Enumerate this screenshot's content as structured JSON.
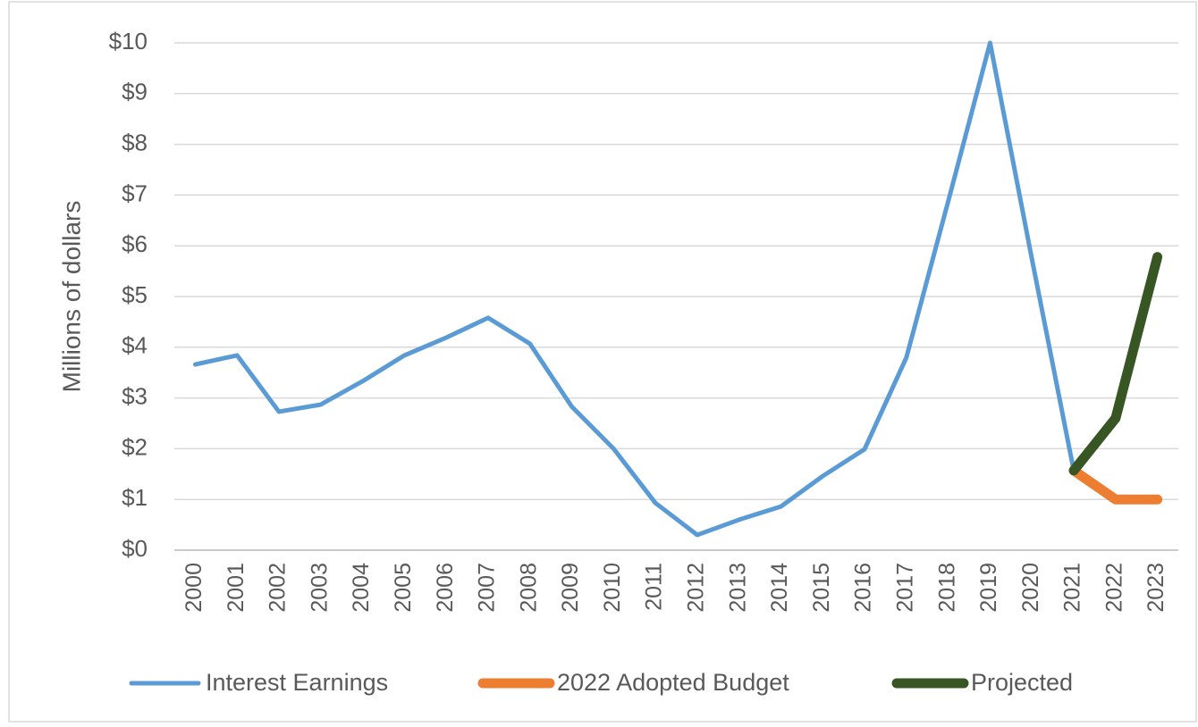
{
  "chart_data": {
    "type": "line",
    "y_label": "Millions of dollars",
    "categories": [
      "2000",
      "2001",
      "2002",
      "2003",
      "2004",
      "2005",
      "2006",
      "2007",
      "2008",
      "2009",
      "2010",
      "2011",
      "2012",
      "2013",
      "2014",
      "2015",
      "2016",
      "2017",
      "2018",
      "2019",
      "2020",
      "2021",
      "2022",
      "2023"
    ],
    "series": [
      {
        "name": "Interest Earnings",
        "color": "#5b9bd5",
        "values": [
          3.66,
          3.84,
          2.73,
          2.87,
          3.33,
          3.84,
          4.19,
          4.58,
          4.07,
          2.83,
          2.0,
          0.93,
          0.3,
          0.6,
          0.86,
          1.46,
          1.99,
          3.8,
          6.88,
          10,
          5.74,
          1.57,
          null,
          null
        ]
      },
      {
        "name": "2022 Adopted Budget",
        "color": "#ed7d31",
        "values": [
          null,
          null,
          null,
          null,
          null,
          null,
          null,
          null,
          null,
          null,
          null,
          null,
          null,
          null,
          null,
          null,
          null,
          null,
          null,
          null,
          null,
          1.57,
          1.0,
          1.0
        ]
      },
      {
        "name": "Projected",
        "color": "#375623",
        "values": [
          null,
          null,
          null,
          null,
          null,
          null,
          null,
          null,
          null,
          null,
          null,
          null,
          null,
          null,
          null,
          null,
          null,
          null,
          null,
          null,
          null,
          1.57,
          2.6,
          5.78
        ]
      }
    ],
    "ylim": [
      0,
      10
    ],
    "yticks": [
      {
        "value": 0,
        "label": "$0"
      },
      {
        "value": 1,
        "label": "$1"
      },
      {
        "value": 2,
        "label": "$2"
      },
      {
        "value": 3,
        "label": "$3"
      },
      {
        "value": 4,
        "label": "$4"
      },
      {
        "value": 5,
        "label": "$5"
      },
      {
        "value": 6,
        "label": "$6"
      },
      {
        "value": 7,
        "label": "$7"
      },
      {
        "value": 8,
        "label": "$8"
      },
      {
        "value": 9,
        "label": "$9"
      },
      {
        "value": 10,
        "label": "$10"
      }
    ],
    "grid": true,
    "legend": "bottom"
  }
}
